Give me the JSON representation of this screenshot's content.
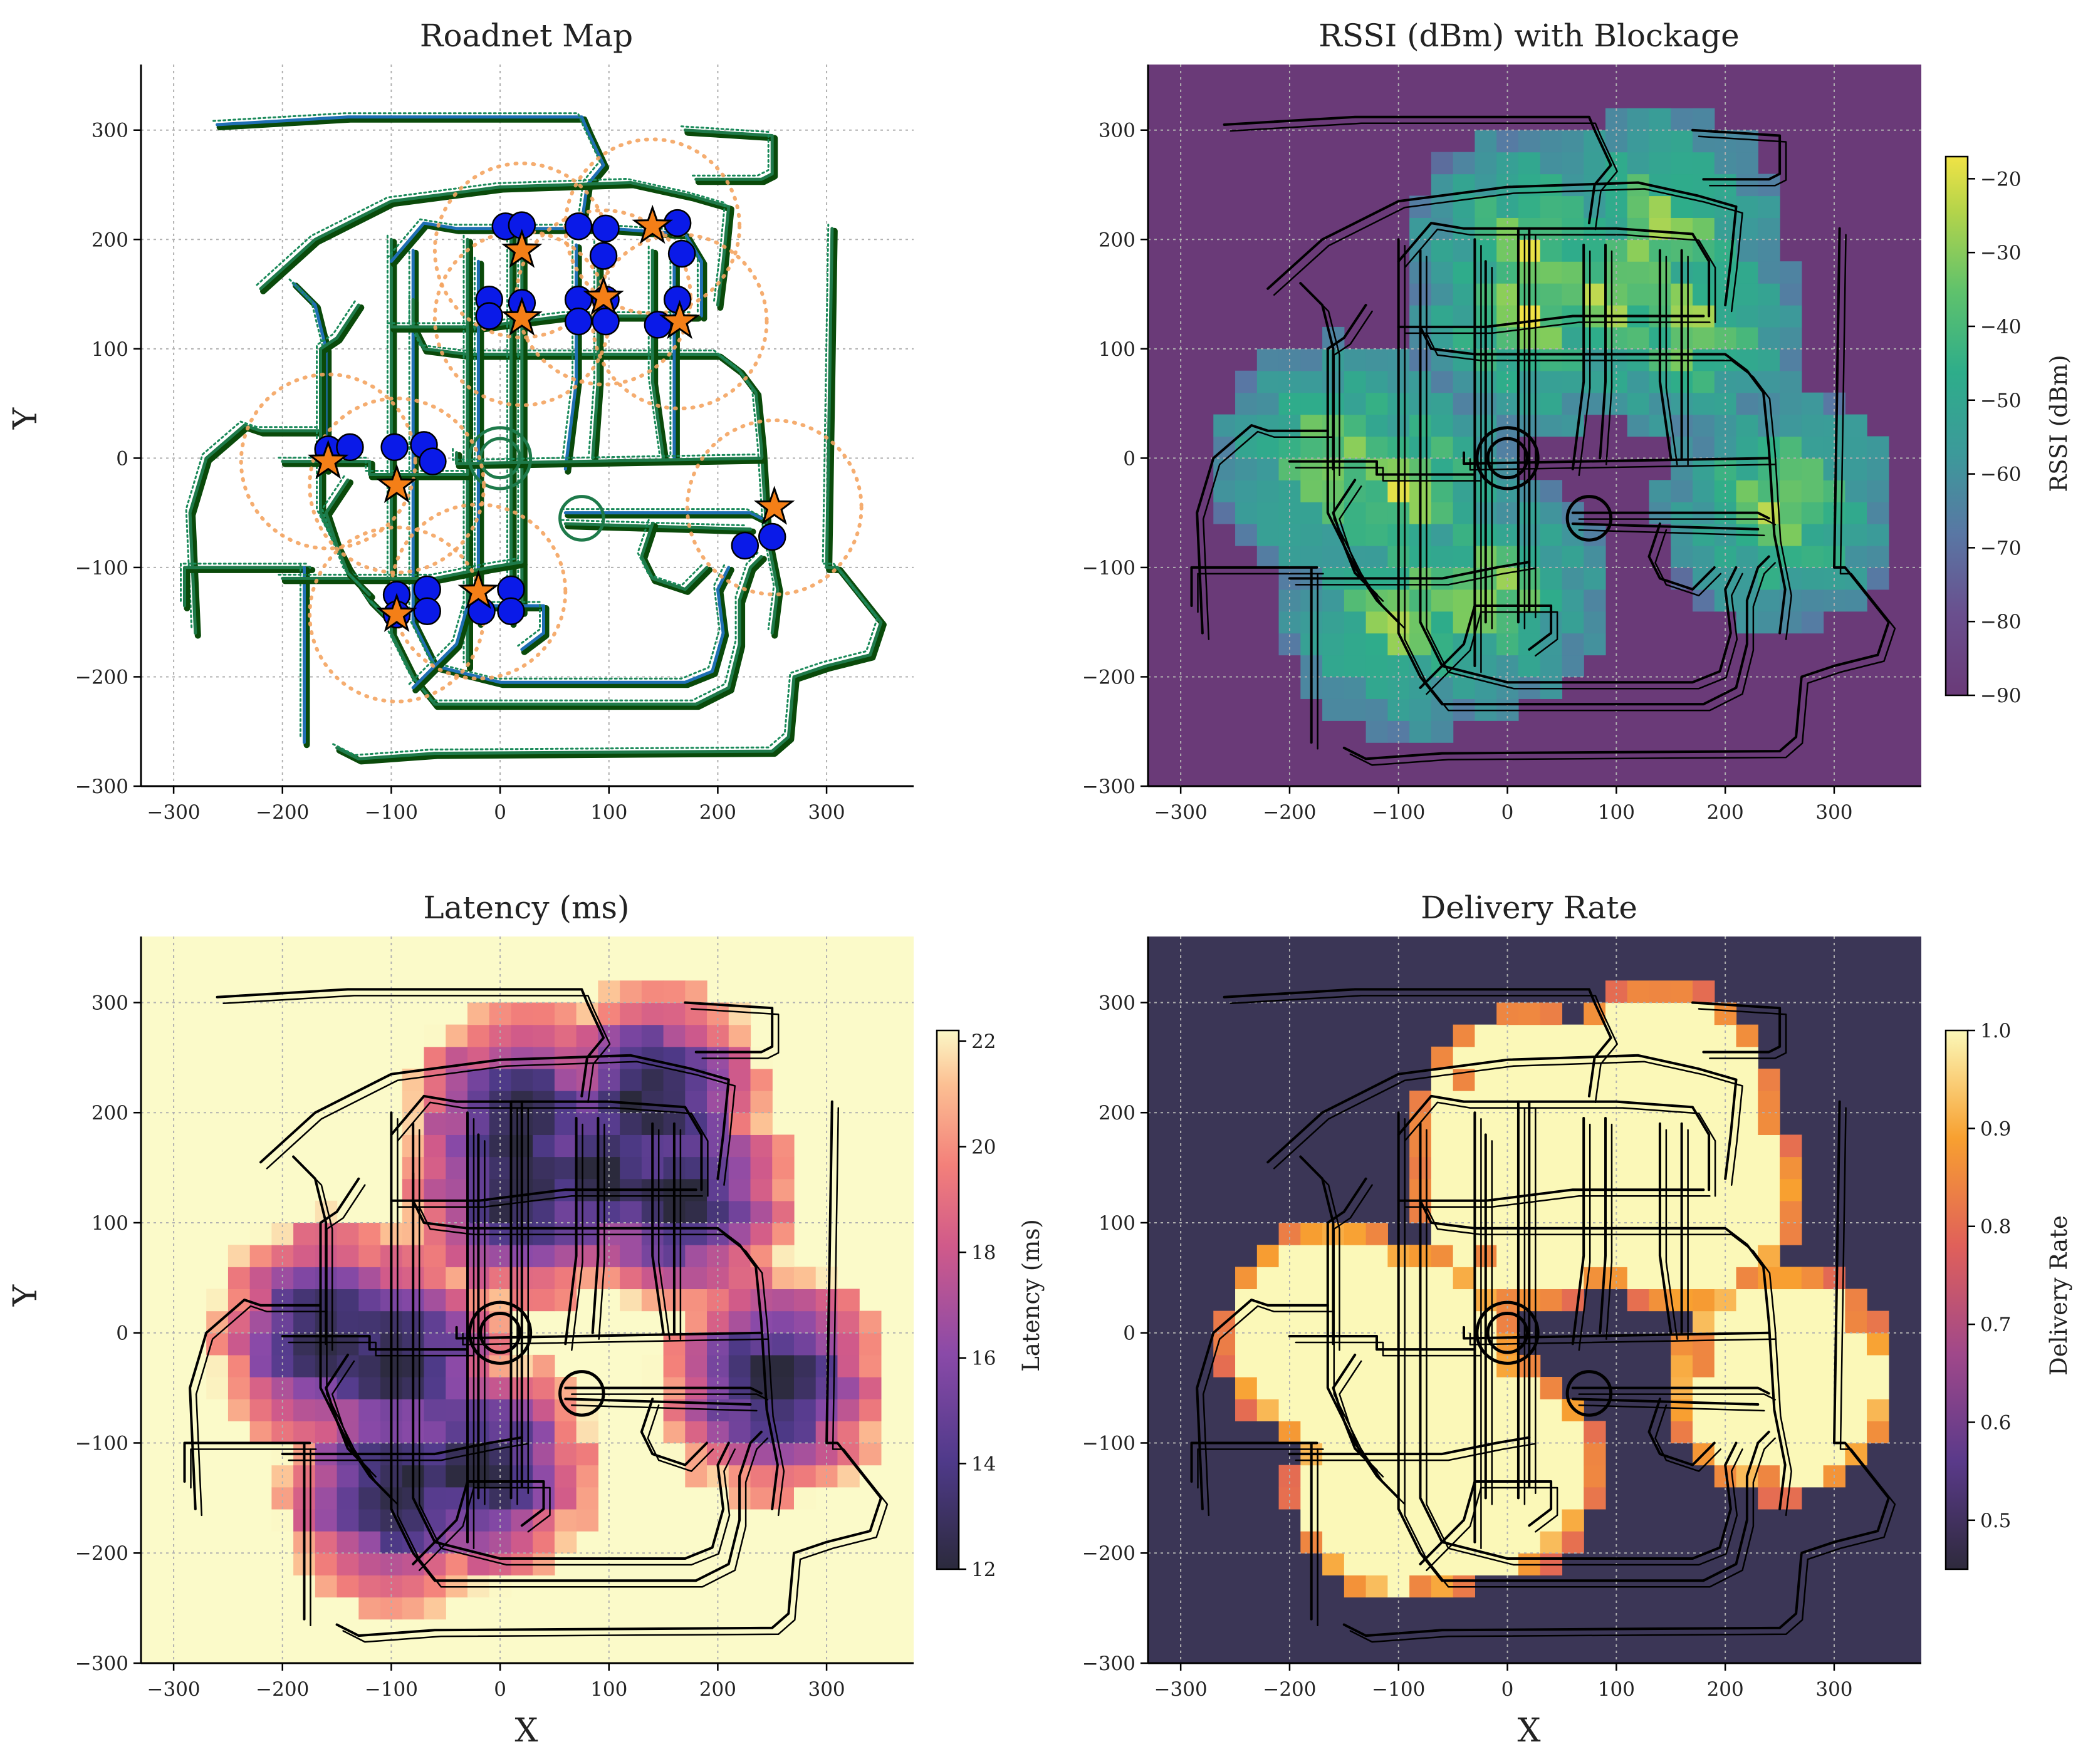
{
  "figure": {
    "panels": [
      {
        "id": "roadnet",
        "title": "Roadnet Map",
        "xlabel": "",
        "ylabel": "Y"
      },
      {
        "id": "rssi",
        "title": "RSSI (dBm) with Blockage",
        "xlabel": "",
        "ylabel": "",
        "colorbar_label": "RSSI (dBm)"
      },
      {
        "id": "latency",
        "title": "Latency (ms)",
        "xlabel": "X",
        "ylabel": "Y",
        "colorbar_label": "Latency (ms)"
      },
      {
        "id": "delivery",
        "title": "Delivery Rate",
        "xlabel": "X",
        "ylabel": "",
        "colorbar_label": "Delivery Rate"
      }
    ],
    "colors": {
      "road_main": "#1f6fb4",
      "road_lane": "#1e7a4a",
      "road_green": "#1a8a5a",
      "road_outline": "#0a4a0a",
      "vehicle": "#0a1ae8",
      "base_station": "#f47f17",
      "coverage_ring": "#f4a460",
      "rssi_background": "#6a3a78",
      "latency_background": "#fbfac9",
      "delivery_background": "#3b3656"
    }
  },
  "chart_data": [
    {
      "type": "scatter",
      "title": "Roadnet Map",
      "xlabel": "",
      "ylabel": "Y",
      "xlim": [
        -330,
        380
      ],
      "ylim": [
        -300,
        360
      ],
      "xticks": [
        -300,
        -200,
        -100,
        0,
        100,
        200,
        300
      ],
      "yticks": [
        -300,
        -200,
        -100,
        0,
        100,
        200,
        300
      ],
      "grid": true,
      "vehicles": [
        [
          5,
          212
        ],
        [
          20,
          213
        ],
        [
          72,
          212
        ],
        [
          97,
          210
        ],
        [
          163,
          215
        ],
        [
          167,
          187
        ],
        [
          95,
          185
        ],
        [
          -10,
          145
        ],
        [
          20,
          142
        ],
        [
          72,
          145
        ],
        [
          97,
          145
        ],
        [
          163,
          145
        ],
        [
          -10,
          130
        ],
        [
          72,
          125
        ],
        [
          97,
          125
        ],
        [
          145,
          122
        ],
        [
          -158,
          8
        ],
        [
          -138,
          10
        ],
        [
          -97,
          10
        ],
        [
          -70,
          12
        ],
        [
          -62,
          -3
        ],
        [
          225,
          -80
        ],
        [
          250,
          -72
        ],
        [
          -95,
          -125
        ],
        [
          -67,
          -120
        ],
        [
          -95,
          -143
        ],
        [
          -67,
          -140
        ],
        [
          -17,
          -140
        ],
        [
          10,
          -120
        ],
        [
          10,
          -140
        ]
      ],
      "base_stations": [
        [
          140,
          212
        ],
        [
          20,
          190
        ],
        [
          95,
          147
        ],
        [
          20,
          128
        ],
        [
          165,
          125
        ],
        [
          -158,
          -3
        ],
        [
          -95,
          -25
        ],
        [
          252,
          -45
        ],
        [
          -20,
          -122
        ],
        [
          -95,
          -143
        ]
      ],
      "coverage_radius": 80
    },
    {
      "type": "heatmap",
      "title": "RSSI (dBm) with Blockage",
      "colorbar_label": "RSSI (dBm)",
      "colormap": "viridis",
      "colorbar_range": [
        -90,
        -17
      ],
      "colorbar_ticks": [
        -90,
        -80,
        -70,
        -60,
        -50,
        -40,
        -30,
        -20
      ],
      "xlim": [
        -330,
        380
      ],
      "ylim": [
        -300,
        360
      ],
      "xticks": [
        -300,
        -200,
        -100,
        0,
        100,
        200,
        300
      ],
      "yticks": [
        -300,
        -200,
        -100,
        0,
        100,
        200,
        300
      ],
      "grid": true
    },
    {
      "type": "heatmap",
      "title": "Latency (ms)",
      "xlabel": "X",
      "ylabel": "Y",
      "colorbar_label": "Latency (ms)",
      "colormap": "magma",
      "colorbar_range": [
        12,
        22.2
      ],
      "colorbar_ticks": [
        12,
        14,
        16,
        18,
        20,
        22
      ],
      "xlim": [
        -330,
        380
      ],
      "ylim": [
        -300,
        360
      ],
      "xticks": [
        -300,
        -200,
        -100,
        0,
        100,
        200,
        300
      ],
      "yticks": [
        -300,
        -200,
        -100,
        0,
        100,
        200,
        300
      ],
      "grid": true
    },
    {
      "type": "heatmap",
      "title": "Delivery Rate",
      "xlabel": "X",
      "ylabel": "",
      "colorbar_label": "Delivery Rate",
      "colormap": "inferno",
      "colorbar_range": [
        0.45,
        1.0
      ],
      "colorbar_ticks": [
        0.5,
        0.6,
        0.7,
        0.8,
        0.9,
        1.0
      ],
      "colorbar_tick_labels": [
        "0.5",
        "0.6",
        "0.7",
        "0.8",
        "0.9",
        "1.0"
      ],
      "xlim": [
        -330,
        380
      ],
      "ylim": [
        -300,
        360
      ],
      "xticks": [
        -300,
        -200,
        -100,
        0,
        100,
        200,
        300
      ],
      "yticks": [
        -300,
        -200,
        -100,
        0,
        100,
        200,
        300
      ],
      "grid": true
    }
  ]
}
